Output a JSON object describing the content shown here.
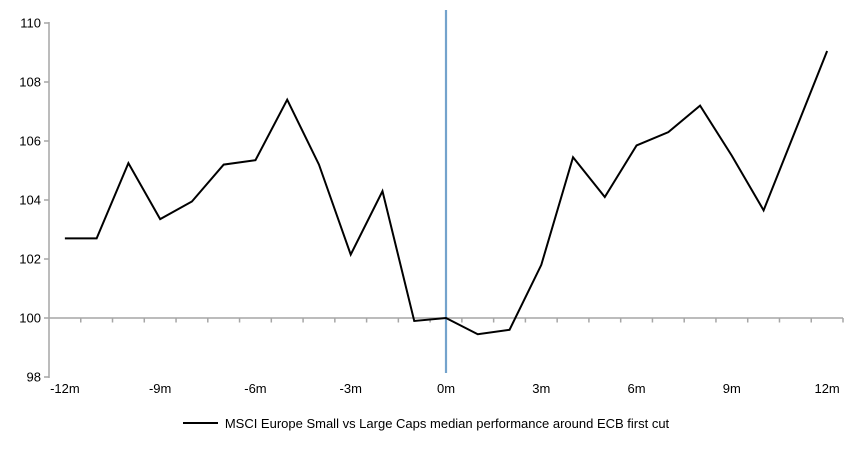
{
  "chart_data": {
    "type": "line",
    "title": "",
    "legend": "MSCI Europe Small vs Large Caps median performance around ECB first cut",
    "legend_position": "bottom-center",
    "x": [
      -12,
      -11,
      -10,
      -9,
      -8,
      -7,
      -6,
      -5,
      -4,
      -3,
      -2,
      -1,
      0,
      1,
      2,
      3,
      4,
      5,
      6,
      7,
      8,
      9,
      10,
      11,
      12
    ],
    "series": [
      {
        "name": "MSCI Europe Small vs Large Caps median performance around ECB first cut",
        "color": "#000000",
        "values": [
          102.7,
          102.7,
          105.25,
          103.35,
          103.95,
          105.2,
          105.35,
          107.4,
          105.2,
          102.15,
          104.3,
          99.9,
          100.0,
          99.45,
          99.6,
          101.8,
          105.45,
          104.1,
          105.85,
          106.3,
          107.2,
          105.5,
          103.65,
          106.35,
          109.05
        ]
      }
    ],
    "xticks": [
      -12,
      -9,
      -6,
      -3,
      0,
      3,
      6,
      9,
      12
    ],
    "xtick_labels": [
      "-12m",
      "-9m",
      "-6m",
      "-3m",
      "0m",
      "3m",
      "6m",
      "9m",
      "12m"
    ],
    "yticks": [
      110,
      108,
      106,
      104,
      102,
      100,
      98
    ],
    "ylim": [
      98,
      110
    ],
    "baseline_value": 100,
    "event_line_x": 0,
    "grid": false,
    "colors": {
      "series": "#000000",
      "baseline": "#A6A6A6",
      "axis": "#A6A6A6",
      "event_line": "#74A3CC",
      "text": "#000000"
    }
  }
}
